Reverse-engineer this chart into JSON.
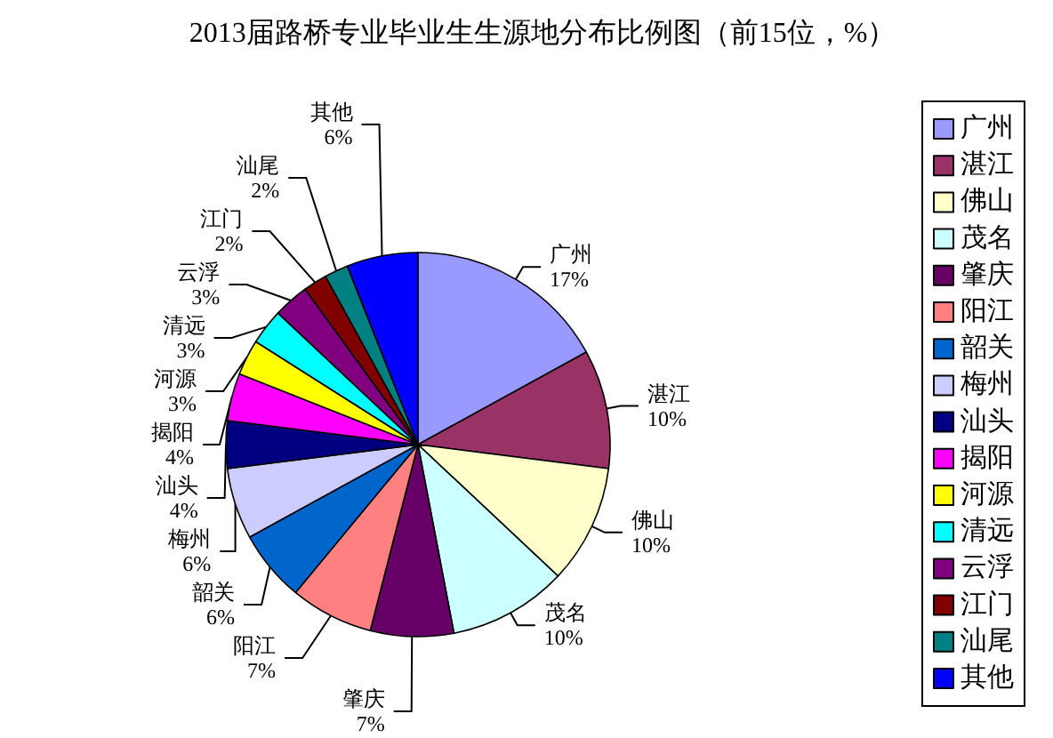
{
  "chart_data": {
    "type": "pie",
    "title": "2013届路桥专业毕业生生源地分布比例图（前15位，%）",
    "categories": [
      "广州",
      "湛江",
      "佛山",
      "茂名",
      "肇庆",
      "阳江",
      "韶关",
      "梅州",
      "汕头",
      "揭阳",
      "河源",
      "清远",
      "云浮",
      "江门",
      "汕尾",
      "其他"
    ],
    "values": [
      17,
      10,
      10,
      10,
      7,
      7,
      6,
      6,
      4,
      4,
      3,
      3,
      3,
      2,
      2,
      6
    ],
    "colors": [
      "#9999ff",
      "#993366",
      "#ffffcc",
      "#ccffff",
      "#660066",
      "#ff8080",
      "#0066cc",
      "#ccccff",
      "#000080",
      "#ff00ff",
      "#ffff00",
      "#00ffff",
      "#800080",
      "#800000",
      "#008080",
      "#0000ff"
    ],
    "value_labels": [
      "17%",
      "10%",
      "10%",
      "10%",
      "7%",
      "7%",
      "6%",
      "6%",
      "4%",
      "4%",
      "3%",
      "3%",
      "3%",
      "2%",
      "2%",
      "6%"
    ],
    "legend": "right"
  }
}
